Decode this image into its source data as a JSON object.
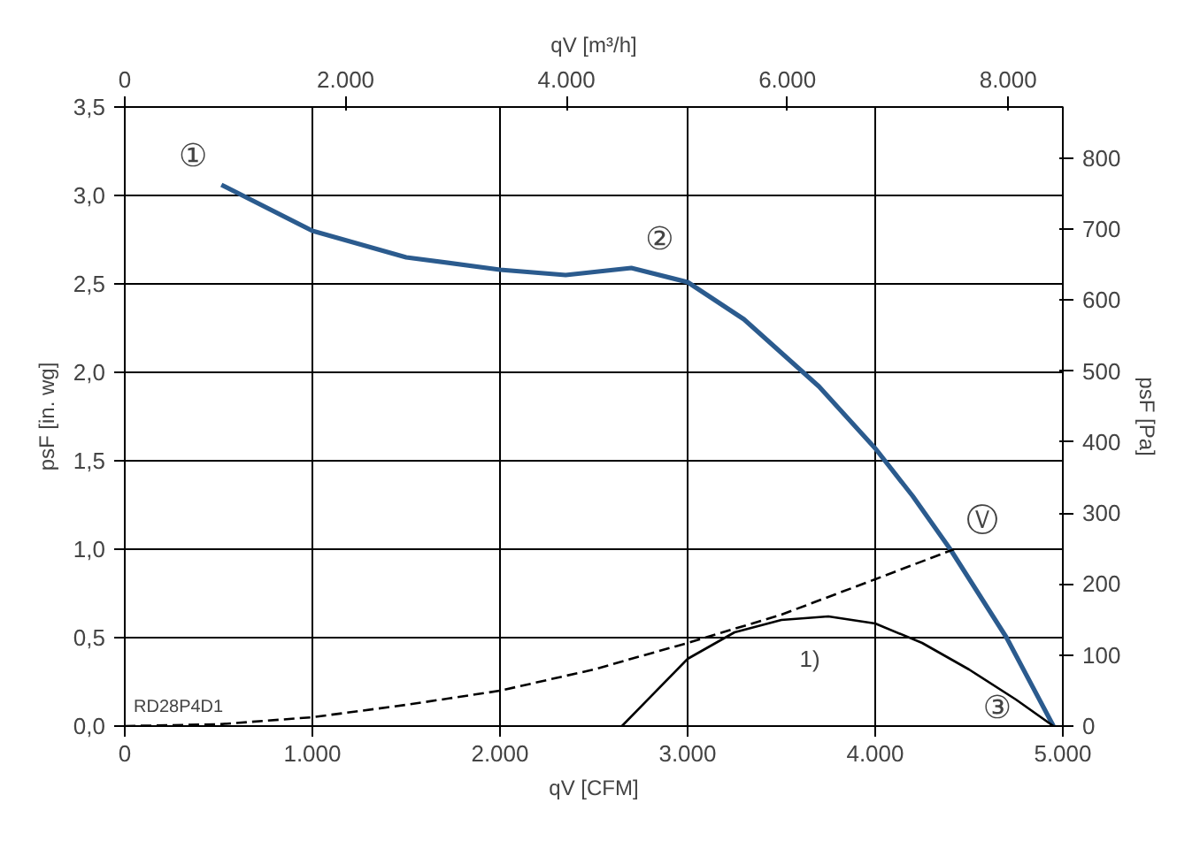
{
  "chart_data": {
    "type": "line",
    "xlabel": "qV [CFM]",
    "ylabel": "psF [in. wg]",
    "y2label": "psF [Pa]",
    "x2label": "qV [m³/h]",
    "xlim": [
      0,
      5000
    ],
    "ylim": [
      0,
      3.5
    ],
    "y2lim": [
      0,
      871.8
    ],
    "x2lim": [
      0,
      8495
    ],
    "xticks": [
      0,
      {
        "value": 1000,
        "label": "1.000"
      },
      {
        "value": 2000,
        "label": "2.000"
      },
      {
        "value": 3000,
        "label": "3.000"
      },
      {
        "value": 4000,
        "label": "4.000"
      },
      {
        "value": 5000,
        "label": "5.000"
      }
    ],
    "yticks": [
      {
        "value": 0,
        "label": "0,0"
      },
      {
        "value": 0.5,
        "label": "0,5"
      },
      {
        "value": 1,
        "label": "1,0"
      },
      {
        "value": 1.5,
        "label": "1,5"
      },
      {
        "value": 2,
        "label": "2,0"
      },
      {
        "value": 2.5,
        "label": "2,5"
      },
      {
        "value": 3,
        "label": "3,0"
      },
      {
        "value": 3.5,
        "label": "3,5"
      }
    ],
    "y2ticks": [
      0,
      100,
      200,
      300,
      400,
      500,
      600,
      700,
      800
    ],
    "x2ticks": [
      0,
      {
        "value": 2000,
        "label": "2.000"
      },
      {
        "value": 4000,
        "label": "4.000"
      },
      {
        "value": 6000,
        "label": "6.000"
      },
      {
        "value": 8000,
        "label": "8.000"
      }
    ],
    "grid": true,
    "series": [
      {
        "color": "#2b5b8e",
        "line_style": "solid",
        "x": [
          515,
          1000,
          1500,
          2000,
          2350,
          2700,
          3000,
          3300,
          3700,
          4000,
          4200,
          4400,
          4700,
          4950
        ],
        "values": [
          3.06,
          2.8,
          2.65,
          2.58,
          2.55,
          2.59,
          2.51,
          2.3,
          1.92,
          1.57,
          1.3,
          1.0,
          0.5,
          0.0
        ]
      },
      {
        "color": "#000000",
        "line_style": "dashed",
        "x": [
          0,
          500,
          1000,
          1500,
          2000,
          2500,
          3000,
          3500,
          4000,
          4420
        ],
        "values": [
          0,
          0.01,
          0.05,
          0.12,
          0.2,
          0.32,
          0.47,
          0.63,
          0.83,
          1.0
        ]
      },
      {
        "color": "#000000",
        "line_style": "solid",
        "x": [
          2650,
          3000,
          3250,
          3500,
          3750,
          4000,
          4250,
          4500,
          4750,
          4950
        ],
        "values": [
          0,
          0.38,
          0.53,
          0.6,
          0.62,
          0.58,
          0.47,
          0.32,
          0.15,
          0
        ]
      }
    ],
    "annotations": [
      {
        "text": "①",
        "x": 515,
        "y": 3.06
      },
      {
        "text": "②",
        "x": 2700,
        "y": 2.59
      },
      {
        "text": "③",
        "x": 4500,
        "y": 0.32
      },
      {
        "text": "Ⓥ",
        "x": 4420,
        "y": 1.0
      },
      {
        "text": "1)",
        "x": 3500,
        "y": 0.6
      },
      "RD28P4D1"
    ]
  }
}
